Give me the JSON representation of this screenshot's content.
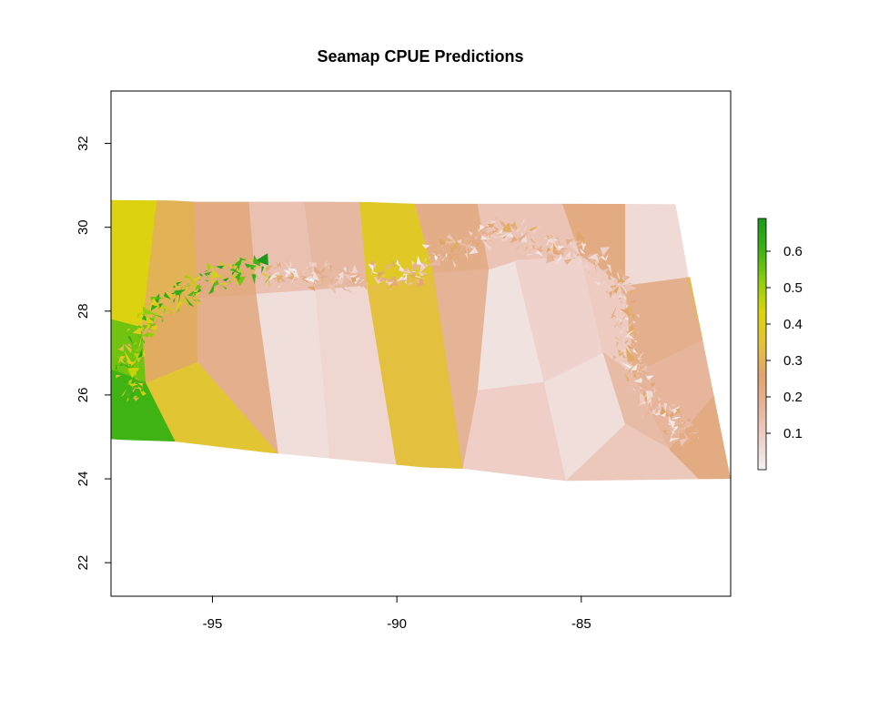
{
  "title": "Seamap CPUE Predictions",
  "x_axis": {
    "ticks": [
      -95,
      -90,
      -85
    ],
    "labels": [
      "-95",
      "-90",
      "-85"
    ],
    "range": [
      -97.75,
      -80.95
    ]
  },
  "y_axis": {
    "ticks": [
      22,
      24,
      26,
      28,
      30,
      32
    ],
    "labels": [
      "22",
      "24",
      "26",
      "28",
      "30",
      "32"
    ],
    "range": [
      21.2,
      33.25
    ]
  },
  "legend": {
    "placement": "right",
    "range": [
      0,
      0.69
    ],
    "ticks": [
      0.1,
      0.2,
      0.3,
      0.4,
      0.5,
      0.6
    ],
    "labels": [
      "0.1",
      "0.2",
      "0.3",
      "0.4",
      "0.5",
      "0.6"
    ],
    "colors": [
      "#f2f2f2",
      "#eecfc8",
      "#e6b49a",
      "#e0a46e",
      "#e3c23b",
      "#dcd40a",
      "#8fcd0e",
      "#3cb214",
      "#1b9a1b"
    ]
  },
  "chart_data": {
    "type": "heatmap",
    "title": "Seamap CPUE Predictions",
    "xlabel": "",
    "ylabel": "",
    "xlim": [
      -97.75,
      -80.95
    ],
    "ylim": [
      21.2,
      33.25
    ],
    "value_range": [
      0,
      0.69
    ],
    "domain_outline_lonlat": [
      [
        -97.75,
        30.65
      ],
      [
        -82.45,
        30.55
      ],
      [
        -80.95,
        24.0
      ],
      [
        -85.4,
        23.95
      ],
      [
        -93.2,
        24.6
      ],
      [
        -97.75,
        24.95
      ]
    ],
    "regions": [
      {
        "pts": [
          [
            -97.75,
            30.65
          ],
          [
            -96.5,
            30.65
          ],
          [
            -96.9,
            27.6
          ],
          [
            -97.75,
            27.8
          ]
        ],
        "v": 0.42
      },
      {
        "pts": [
          [
            -97.75,
            27.8
          ],
          [
            -96.9,
            27.6
          ],
          [
            -96.8,
            26.3
          ],
          [
            -97.75,
            26.6
          ]
        ],
        "v": 0.55
      },
      {
        "pts": [
          [
            -97.75,
            26.6
          ],
          [
            -96.8,
            26.3
          ],
          [
            -96.0,
            24.9
          ],
          [
            -97.75,
            24.95
          ]
        ],
        "v": 0.6
      },
      {
        "pts": [
          [
            -96.5,
            30.65
          ],
          [
            -95.5,
            30.6
          ],
          [
            -95.4,
            28.3
          ],
          [
            -96.9,
            27.6
          ]
        ],
        "v": 0.3
      },
      {
        "pts": [
          [
            -95.5,
            30.6
          ],
          [
            -94.0,
            30.6
          ],
          [
            -93.8,
            28.4
          ],
          [
            -95.4,
            28.3
          ]
        ],
        "v": 0.22
      },
      {
        "pts": [
          [
            -96.8,
            26.3
          ],
          [
            -95.4,
            26.8
          ],
          [
            -93.2,
            24.6
          ],
          [
            -96.0,
            24.9
          ]
        ],
        "v": 0.36
      },
      {
        "pts": [
          [
            -96.9,
            27.6
          ],
          [
            -95.4,
            28.3
          ],
          [
            -95.4,
            26.8
          ],
          [
            -96.8,
            26.3
          ]
        ],
        "v": 0.28
      },
      {
        "pts": [
          [
            -95.4,
            28.3
          ],
          [
            -93.8,
            28.4
          ],
          [
            -93.2,
            24.6
          ],
          [
            -95.4,
            26.8
          ]
        ],
        "v": 0.2
      },
      {
        "pts": [
          [
            -94.0,
            30.6
          ],
          [
            -92.5,
            30.6
          ],
          [
            -92.2,
            28.5
          ],
          [
            -93.8,
            28.4
          ]
        ],
        "v": 0.13
      },
      {
        "pts": [
          [
            -93.8,
            28.4
          ],
          [
            -92.2,
            28.5
          ],
          [
            -91.8,
            24.4
          ],
          [
            -93.2,
            24.6
          ]
        ],
        "v": 0.05
      },
      {
        "pts": [
          [
            -92.5,
            30.6
          ],
          [
            -91.0,
            30.6
          ],
          [
            -90.8,
            28.6
          ],
          [
            -92.2,
            28.5
          ]
        ],
        "v": 0.16
      },
      {
        "pts": [
          [
            -92.2,
            28.5
          ],
          [
            -90.8,
            28.6
          ],
          [
            -90.0,
            24.3
          ],
          [
            -91.8,
            24.4
          ]
        ],
        "v": 0.07
      },
      {
        "pts": [
          [
            -91.0,
            30.6
          ],
          [
            -89.5,
            30.55
          ],
          [
            -89.0,
            28.9
          ],
          [
            -90.8,
            28.6
          ]
        ],
        "v": 0.38
      },
      {
        "pts": [
          [
            -90.8,
            28.6
          ],
          [
            -89.0,
            28.9
          ],
          [
            -88.2,
            24.25
          ],
          [
            -90.0,
            24.3
          ]
        ],
        "v": 0.34
      },
      {
        "pts": [
          [
            -89.5,
            30.55
          ],
          [
            -87.8,
            30.55
          ],
          [
            -87.5,
            29.0
          ],
          [
            -89.0,
            28.9
          ]
        ],
        "v": 0.21
      },
      {
        "pts": [
          [
            -89.0,
            28.9
          ],
          [
            -87.5,
            29.0
          ],
          [
            -87.8,
            26.1
          ],
          [
            -88.2,
            24.25
          ]
        ],
        "v": 0.18
      },
      {
        "pts": [
          [
            -87.5,
            29.0
          ],
          [
            -86.8,
            29.2
          ],
          [
            -86.0,
            26.3
          ],
          [
            -87.8,
            26.1
          ]
        ],
        "v": 0.04
      },
      {
        "pts": [
          [
            -87.8,
            26.1
          ],
          [
            -86.0,
            26.3
          ],
          [
            -85.4,
            23.95
          ],
          [
            -88.2,
            24.25
          ]
        ],
        "v": 0.09
      },
      {
        "pts": [
          [
            -87.8,
            30.55
          ],
          [
            -85.5,
            30.55
          ],
          [
            -85.0,
            29.3
          ],
          [
            -86.8,
            29.2
          ],
          [
            -87.5,
            29.0
          ]
        ],
        "v": 0.12
      },
      {
        "pts": [
          [
            -86.8,
            29.2
          ],
          [
            -85.0,
            29.3
          ],
          [
            -84.4,
            27.0
          ],
          [
            -86.0,
            26.3
          ]
        ],
        "v": 0.08
      },
      {
        "pts": [
          [
            -86.0,
            26.3
          ],
          [
            -84.4,
            27.0
          ],
          [
            -83.8,
            25.3
          ],
          [
            -85.4,
            23.95
          ]
        ],
        "v": 0.05
      },
      {
        "pts": [
          [
            -85.5,
            30.55
          ],
          [
            -83.8,
            30.55
          ],
          [
            -83.8,
            28.6
          ],
          [
            -85.0,
            29.3
          ]
        ],
        "v": 0.22
      },
      {
        "pts": [
          [
            -85.0,
            29.3
          ],
          [
            -83.8,
            28.6
          ],
          [
            -83.6,
            26.5
          ],
          [
            -84.4,
            27.0
          ]
        ],
        "v": 0.1
      },
      {
        "pts": [
          [
            -83.8,
            30.55
          ],
          [
            -82.45,
            30.55
          ],
          [
            -82.1,
            28.8
          ],
          [
            -83.8,
            28.6
          ]
        ],
        "v": 0.06
      },
      {
        "pts": [
          [
            -83.8,
            28.6
          ],
          [
            -82.1,
            28.8
          ],
          [
            -81.7,
            27.3
          ],
          [
            -83.6,
            26.5
          ]
        ],
        "v": 0.2
      },
      {
        "pts": [
          [
            -82.1,
            28.8
          ],
          [
            -81.5,
            28.8
          ],
          [
            -81.3,
            27.5
          ],
          [
            -81.7,
            27.3
          ]
        ],
        "v": 0.32
      },
      {
        "pts": [
          [
            -84.4,
            27.0
          ],
          [
            -83.6,
            26.5
          ],
          [
            -82.6,
            24.7
          ],
          [
            -83.8,
            25.3
          ]
        ],
        "v": 0.15
      },
      {
        "pts": [
          [
            -83.6,
            26.5
          ],
          [
            -81.7,
            27.3
          ],
          [
            -81.3,
            26.1
          ],
          [
            -82.6,
            24.7
          ]
        ],
        "v": 0.17
      },
      {
        "pts": [
          [
            -83.8,
            25.3
          ],
          [
            -82.6,
            24.7
          ],
          [
            -81.8,
            24.0
          ],
          [
            -85.4,
            23.95
          ]
        ],
        "v": 0.11
      },
      {
        "pts": [
          [
            -82.6,
            24.7
          ],
          [
            -81.3,
            26.1
          ],
          [
            -80.95,
            24.0
          ],
          [
            -81.8,
            24.0
          ]
        ],
        "v": 0.22
      }
    ],
    "noise_band_lonlat": [
      [
        -97.2,
        25.9
      ],
      [
        -97.3,
        26.7
      ],
      [
        -97.0,
        27.4
      ],
      [
        -96.5,
        27.9
      ],
      [
        -95.8,
        28.4
      ],
      [
        -95.0,
        28.8
      ],
      [
        -94.3,
        28.95
      ],
      [
        -93.5,
        28.95
      ],
      [
        -92.5,
        28.85
      ],
      [
        -91.5,
        28.8
      ],
      [
        -90.5,
        28.8
      ],
      [
        -89.6,
        28.95
      ],
      [
        -88.8,
        29.3
      ],
      [
        -88.1,
        29.6
      ],
      [
        -87.5,
        29.95
      ],
      [
        -86.8,
        29.9
      ],
      [
        -86.0,
        29.6
      ],
      [
        -85.3,
        29.5
      ],
      [
        -84.6,
        29.2
      ],
      [
        -84.0,
        28.6
      ],
      [
        -83.7,
        27.9
      ],
      [
        -83.8,
        27.2
      ],
      [
        -83.5,
        26.5
      ],
      [
        -83.0,
        25.8
      ],
      [
        -82.5,
        25.3
      ],
      [
        -82.0,
        25.0
      ]
    ]
  }
}
